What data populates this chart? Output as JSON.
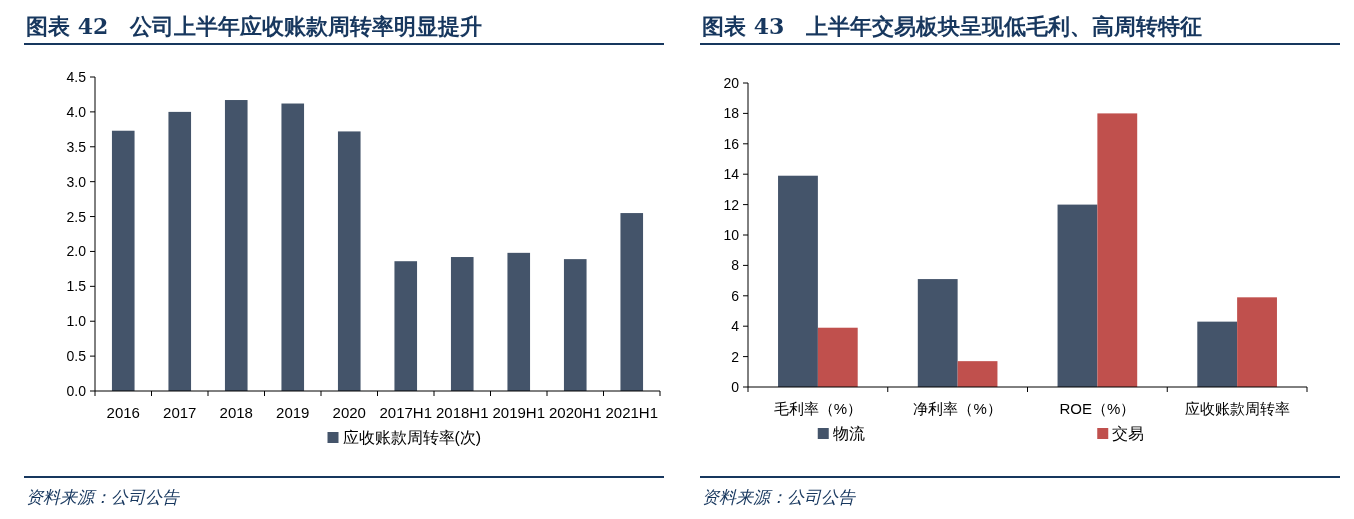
{
  "chart_data": [
    {
      "type": "bar",
      "title": "图表 42　公司上半年应收账款周转率明显提升",
      "categories": [
        "2016",
        "2017",
        "2018",
        "2019",
        "2020",
        "2017H1",
        "2018H1",
        "2019H1",
        "2020H1",
        "2021H1"
      ],
      "series": [
        {
          "name": "应收账款周转率(次)",
          "color": "#44546a",
          "values": [
            3.73,
            4.0,
            4.17,
            4.12,
            3.72,
            1.86,
            1.92,
            1.98,
            1.89,
            2.55
          ]
        }
      ],
      "ylim": [
        0,
        4.5
      ],
      "yticks": [
        {
          "value": 0,
          "label": "0.0"
        },
        0.5,
        {
          "value": 1,
          "label": "1.0"
        },
        1.5,
        {
          "value": 2,
          "label": "2.0"
        },
        2.5,
        {
          "value": 3,
          "label": "3.0"
        },
        3.5,
        {
          "value": 4,
          "label": "4.0"
        },
        4.5
      ],
      "legend": "bottom",
      "annotations": [
        "资料来源：公司公告"
      ]
    },
    {
      "type": "bar",
      "title": "图表 43　上半年交易板块呈现低毛利、高周转特征",
      "categories": [
        "毛利率（%）",
        "净利率（%）",
        "ROE（%）",
        "应收账款周转率"
      ],
      "series": [
        {
          "name": "物流",
          "color": "#44546a",
          "values": [
            13.9,
            7.1,
            12.0,
            4.3
          ]
        },
        {
          "name": "交易",
          "color": "#c0504d",
          "values": [
            3.9,
            1.7,
            18.0,
            5.9
          ]
        }
      ],
      "ylim": [
        0,
        20
      ],
      "yticks": [
        0,
        2,
        4,
        6,
        8,
        10,
        12,
        14,
        16,
        18,
        20
      ],
      "legend": "bottom",
      "annotations": [
        "资料来源：公司公告"
      ]
    }
  ]
}
